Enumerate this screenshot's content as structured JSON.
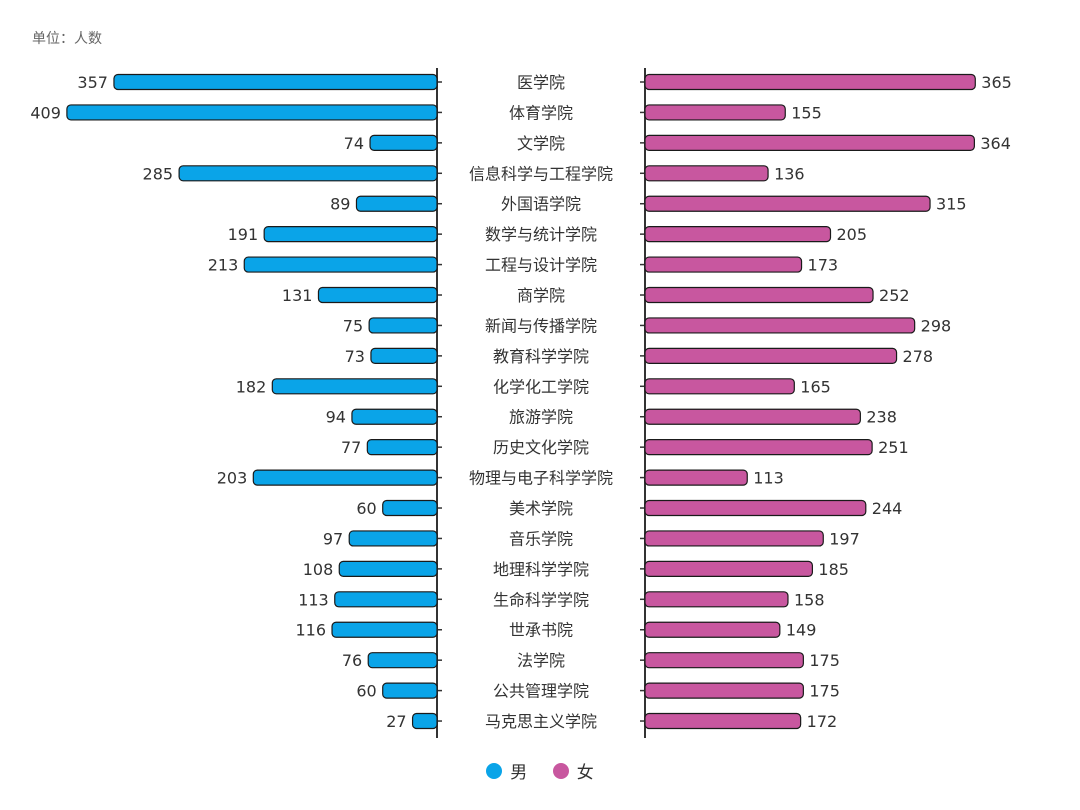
{
  "unit_label": "单位：人数",
  "colors": {
    "male": "#0aa4e8",
    "female": "#c8579f",
    "axis": "#333333"
  },
  "chart_data": {
    "type": "bar",
    "orientation": "horizontal-butterfly",
    "categories": [
      "医学院",
      "体育学院",
      "文学院",
      "信息科学与工程学院",
      "外国语学院",
      "数学与统计学院",
      "工程与设计学院",
      "商学院",
      "新闻与传播学院",
      "教育科学学院",
      "化学化工学院",
      "旅游学院",
      "历史文化学院",
      "物理与电子科学学院",
      "美术学院",
      "音乐学院",
      "地理科学学院",
      "生命科学学院",
      "世承书院",
      "法学院",
      "公共管理学院",
      "马克思主义学院"
    ],
    "series": [
      {
        "name": "男",
        "values": [
          357,
          409,
          74,
          285,
          89,
          191,
          213,
          131,
          75,
          73,
          182,
          94,
          77,
          203,
          60,
          97,
          108,
          113,
          116,
          76,
          60,
          27
        ]
      },
      {
        "name": "女",
        "values": [
          365,
          155,
          364,
          136,
          315,
          205,
          173,
          252,
          298,
          278,
          165,
          238,
          251,
          113,
          244,
          197,
          185,
          158,
          149,
          175,
          175,
          172
        ]
      }
    ],
    "legend_position": "bottom-center",
    "grid": false
  }
}
